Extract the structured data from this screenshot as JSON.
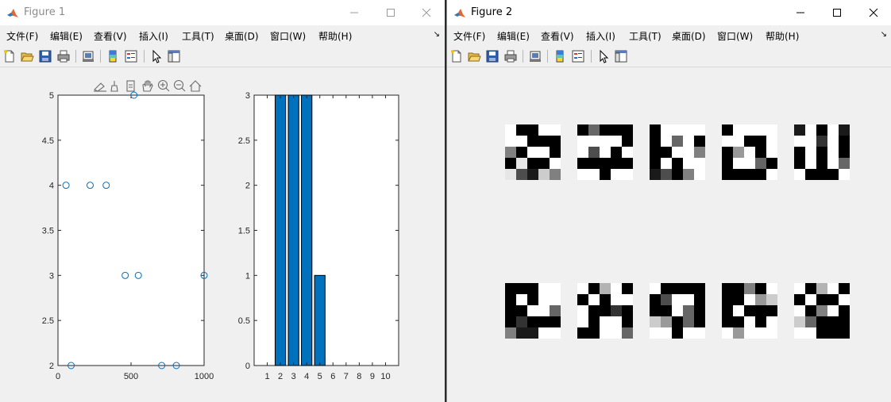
{
  "window1": {
    "title": "Figure 1",
    "menu": [
      "文件(F)",
      "编辑(E)",
      "查看(V)",
      "插入(I)",
      "工具(T)",
      "桌面(D)",
      "窗口(W)",
      "帮助(H)"
    ],
    "menu_arrow": "↘",
    "axes_toolbar_icons": [
      "export-icon",
      "brush-icon",
      "datatip-icon",
      "pan-icon",
      "zoom-in-icon",
      "zoom-out-icon",
      "home-icon"
    ]
  },
  "window2": {
    "title": "Figure 2",
    "menu": [
      "文件(F)",
      "编辑(E)",
      "查看(V)",
      "插入(I)",
      "工具(T)",
      "桌面(D)",
      "窗口(W)",
      "帮助(H)"
    ],
    "menu_arrow": "↘"
  },
  "toolbar_icons": [
    "new-figure-icon",
    "open-icon",
    "save-icon",
    "print-icon",
    "link-plot-icon",
    "colorbar-icon",
    "legend-icon",
    "pointer-icon",
    "property-inspector-icon"
  ],
  "colors": {
    "marker": "#0072bd",
    "bar_fill": "#0072bd",
    "axes_bg": "#ffffff",
    "figure_bg": "#f0f0f0"
  },
  "chart_data": [
    {
      "type": "scatter",
      "marker": "circle",
      "xlim": [
        0,
        1000
      ],
      "ylim": [
        2,
        5
      ],
      "xticks": [
        0,
        500,
        1000
      ],
      "yticks": [
        2,
        2.5,
        3,
        3.5,
        4,
        4.5,
        5
      ],
      "xtick_labels": [
        "0",
        "500",
        "1000"
      ],
      "ytick_labels": [
        "2",
        "2.5",
        "3",
        "3.5",
        "4",
        "4.5",
        "5"
      ],
      "x": [
        55,
        90,
        220,
        330,
        460,
        550,
        520,
        710,
        810,
        1000
      ],
      "y": [
        4,
        2,
        4,
        4,
        3,
        3,
        5,
        2,
        2,
        3
      ]
    },
    {
      "type": "bar",
      "categories": [
        "1",
        "2",
        "3",
        "4",
        "5",
        "6",
        "7",
        "8",
        "9",
        "10"
      ],
      "values": [
        0,
        3,
        3,
        3,
        1,
        0,
        0,
        0,
        0,
        0
      ],
      "xlim": [
        0,
        11
      ],
      "ylim": [
        0,
        3
      ],
      "yticks": [
        0,
        0.5,
        1,
        1.5,
        2,
        2.5,
        3
      ],
      "ytick_labels": [
        "0",
        "0.5",
        "1",
        "1.5",
        "2",
        "2.5",
        "3"
      ]
    },
    {
      "type": "heatmap",
      "colormap": "gray",
      "value_range": [
        0,
        1
      ],
      "images": [
        [
          [
            1,
            0,
            0,
            1,
            1
          ],
          [
            1,
            1,
            0,
            0,
            0
          ],
          [
            0.5,
            0,
            1,
            1,
            0
          ],
          [
            0,
            0.9,
            0,
            0,
            1
          ],
          [
            0.9,
            0.3,
            0.1,
            0.8,
            0.5
          ]
        ],
        [
          [
            0,
            0.4,
            0,
            0,
            0
          ],
          [
            1,
            1,
            1,
            1,
            0
          ],
          [
            1,
            0.3,
            1,
            0,
            1
          ],
          [
            0,
            0,
            0,
            0,
            0
          ],
          [
            1,
            1,
            0,
            1,
            1
          ]
        ],
        [
          [
            0,
            1,
            1,
            1,
            1
          ],
          [
            0,
            1,
            0.4,
            1,
            0
          ],
          [
            0,
            0,
            1,
            1,
            0.5
          ],
          [
            0,
            1,
            0,
            1,
            1
          ],
          [
            0.1,
            0.3,
            0,
            0.5,
            1
          ]
        ],
        [
          [
            0,
            1,
            1,
            1,
            1
          ],
          [
            1,
            1,
            0,
            0,
            1
          ],
          [
            0,
            0.6,
            1,
            0,
            1
          ],
          [
            0,
            1,
            1,
            0.4,
            0
          ],
          [
            0,
            0,
            0,
            0,
            1
          ]
        ],
        [
          [
            0.1,
            1,
            0,
            1,
            0.1
          ],
          [
            1,
            1,
            0.2,
            1,
            0
          ],
          [
            0,
            1,
            0,
            1,
            0
          ],
          [
            0,
            1,
            0,
            1,
            0.4
          ],
          [
            1,
            0,
            0,
            0,
            1
          ]
        ],
        [
          [
            0,
            0,
            0,
            1,
            1
          ],
          [
            0,
            1,
            0,
            1,
            1
          ],
          [
            0,
            0,
            1,
            1,
            0.4
          ],
          [
            0,
            0.2,
            0,
            0,
            0
          ],
          [
            0.5,
            0.1,
            0.1,
            1,
            1
          ]
        ],
        [
          [
            1,
            0,
            0.7,
            1,
            0
          ],
          [
            0,
            1,
            0,
            1,
            1
          ],
          [
            1,
            0,
            0,
            0.2,
            0
          ],
          [
            1,
            0,
            1,
            1,
            0
          ],
          [
            0,
            0,
            1,
            1,
            0.4
          ]
        ],
        [
          [
            1,
            0,
            0,
            0,
            0
          ],
          [
            0,
            0.3,
            1,
            1,
            0
          ],
          [
            0,
            0,
            1,
            0.4,
            0
          ],
          [
            0.8,
            0.6,
            0,
            0.4,
            0
          ],
          [
            1,
            1,
            0,
            1,
            1
          ]
        ],
        [
          [
            0,
            0,
            0.5,
            0,
            1
          ],
          [
            0,
            0,
            1,
            0.6,
            0.8
          ],
          [
            0,
            1,
            0,
            0,
            0
          ],
          [
            0,
            0,
            1,
            0,
            1
          ],
          [
            1,
            0.6,
            1,
            1,
            1
          ]
        ],
        [
          [
            1,
            0,
            0.7,
            1,
            0
          ],
          [
            0,
            1,
            0,
            0,
            1
          ],
          [
            1,
            0,
            0.5,
            1,
            0
          ],
          [
            0.8,
            0.4,
            0,
            0,
            0
          ],
          [
            1,
            1,
            0,
            0,
            0
          ]
        ]
      ]
    }
  ]
}
